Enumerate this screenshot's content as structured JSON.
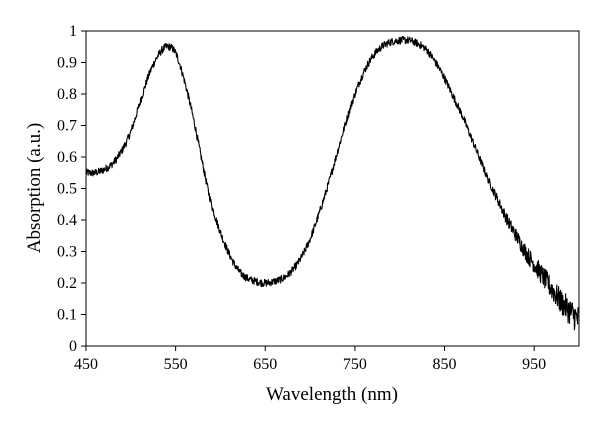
{
  "chart_data": {
    "type": "line",
    "title": "",
    "xlabel": "Wavelength (nm)",
    "ylabel": "Absorption (a.u.)",
    "xlim": [
      450,
      1000
    ],
    "ylim": [
      0,
      1
    ],
    "x_ticks": [
      450,
      550,
      650,
      750,
      850,
      950
    ],
    "y_ticks": [
      0,
      0.1,
      0.2,
      0.3,
      0.4,
      0.5,
      0.6,
      0.7,
      0.8,
      0.9,
      1
    ],
    "x_tick_labels": [
      "450",
      "550",
      "650",
      "750",
      "850",
      "950"
    ],
    "y_tick_labels": [
      "0",
      "0.1",
      "0.2",
      "0.3",
      "0.4",
      "0.5",
      "0.6",
      "0.7",
      "0.8",
      "0.9",
      "1"
    ],
    "grid": false,
    "legend": "none",
    "line_color": "#000000",
    "series": [
      {
        "x": [
          450,
          460,
          470,
          480,
          490,
          500,
          510,
          520,
          530,
          540,
          550,
          560,
          570,
          580,
          590,
          600,
          610,
          620,
          630,
          640,
          650,
          660,
          670,
          680,
          690,
          700,
          710,
          720,
          730,
          740,
          750,
          760,
          770,
          780,
          790,
          800,
          810,
          820,
          830,
          840,
          850,
          860,
          870,
          880,
          890,
          900,
          910,
          920,
          930,
          940,
          950,
          960,
          970,
          980,
          990,
          1000
        ],
        "values": [
          0.55,
          0.55,
          0.56,
          0.58,
          0.62,
          0.68,
          0.77,
          0.86,
          0.92,
          0.95,
          0.93,
          0.84,
          0.72,
          0.58,
          0.45,
          0.36,
          0.29,
          0.24,
          0.215,
          0.205,
          0.2,
          0.205,
          0.215,
          0.24,
          0.28,
          0.34,
          0.42,
          0.51,
          0.61,
          0.71,
          0.8,
          0.87,
          0.92,
          0.95,
          0.965,
          0.97,
          0.97,
          0.96,
          0.94,
          0.9,
          0.85,
          0.79,
          0.73,
          0.66,
          0.59,
          0.52,
          0.46,
          0.4,
          0.35,
          0.3,
          0.26,
          0.22,
          0.18,
          0.14,
          0.11,
          0.08
        ]
      }
    ]
  }
}
